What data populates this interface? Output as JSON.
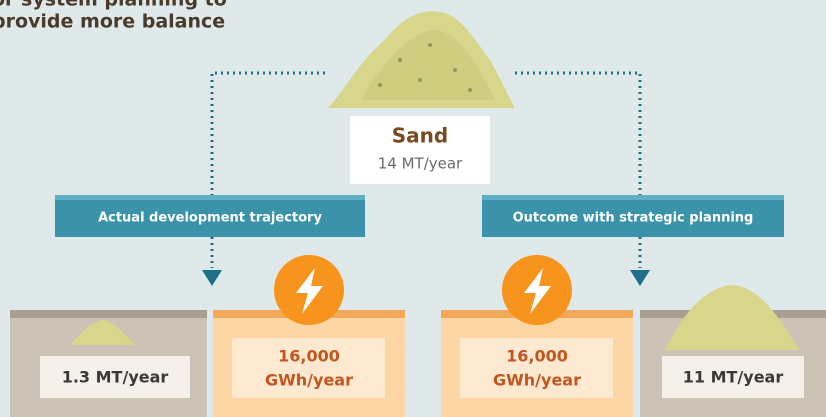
{
  "header": {
    "title_lines": [
      "or system planning to",
      "provide more balance"
    ]
  },
  "source": {
    "label": "Sand",
    "amount": "14 MT/year"
  },
  "branches": [
    {
      "label": "Actual development trajectory",
      "sand": "1.3 MT/year",
      "energy": [
        "16,000",
        "GWh/year"
      ]
    },
    {
      "label": "Outcome with strategic planning",
      "energy": [
        "16,000",
        "GWh/year"
      ],
      "sand": "11 MT/year"
    }
  ]
}
